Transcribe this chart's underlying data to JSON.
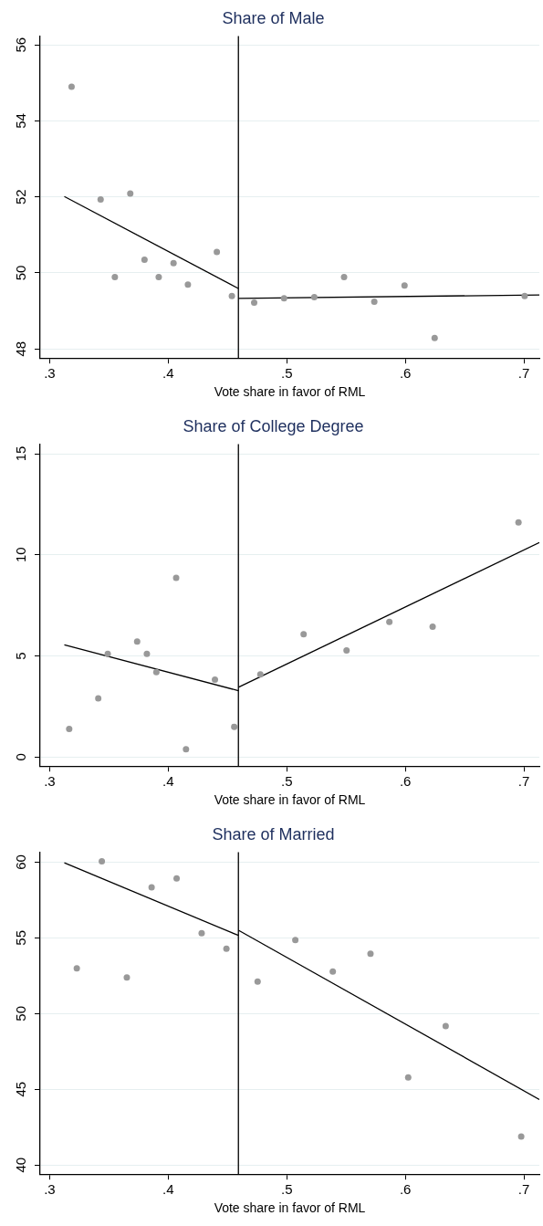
{
  "chart_data": [
    {
      "type": "scatter",
      "title": "Share of Male",
      "xlabel": "Vote share in favor of RML",
      "xlim": [
        0.292,
        0.713
      ],
      "xticks": [
        {
          "value": 0.3,
          "label": ".3"
        },
        {
          "value": 0.4,
          "label": ".4"
        },
        {
          "value": 0.5,
          "label": ".5"
        },
        {
          "value": 0.6,
          "label": ".6"
        },
        {
          "value": 0.7,
          "label": ".7"
        }
      ],
      "ylim": [
        47.76,
        56.23
      ],
      "yticks": [
        48,
        50,
        52,
        54,
        56
      ],
      "grid": "y",
      "legend": false,
      "ref_lines": [
        {
          "axis": "x",
          "value": 0.4592,
          "color": "#000000"
        }
      ],
      "series": [
        {
          "marker": "circle",
          "color": "#999999",
          "x": [
            0.3185,
            0.343,
            0.368,
            0.355,
            0.38,
            0.392,
            0.4045,
            0.4166,
            0.441,
            0.4537,
            0.4725,
            0.4977,
            0.5232,
            0.5483,
            0.5738,
            0.5993,
            0.6247,
            0.7006
          ],
          "values": [
            54.9,
            51.93,
            52.09,
            49.89,
            50.35,
            49.89,
            50.26,
            49.69,
            50.55,
            49.39,
            49.22,
            49.33,
            49.36,
            49.89,
            49.24,
            49.67,
            48.29,
            49.39
          ]
        },
        {
          "type": "line",
          "color": "#000000",
          "x": [
            0.3124,
            0.4592
          ],
          "values": [
            52.01,
            49.59
          ]
        },
        {
          "type": "line",
          "color": "#000000",
          "x": [
            0.4592,
            0.713
          ],
          "values": [
            49.33,
            49.42
          ]
        }
      ]
    },
    {
      "type": "scatter",
      "title": "Share of College Degree",
      "xlabel": "Vote share in favor of RML",
      "xlim": [
        0.292,
        0.713
      ],
      "xticks": [
        {
          "value": 0.3,
          "label": ".3"
        },
        {
          "value": 0.4,
          "label": ".4"
        },
        {
          "value": 0.5,
          "label": ".5"
        },
        {
          "value": 0.6,
          "label": ".6"
        },
        {
          "value": 0.7,
          "label": ".7"
        }
      ],
      "ylim": [
        -0.45,
        15.47
      ],
      "yticks": [
        0,
        5,
        10,
        15
      ],
      "grid": "y",
      "legend": false,
      "ref_lines": [
        {
          "axis": "x",
          "value": 0.4592,
          "color": "#000000"
        }
      ],
      "series": [
        {
          "marker": "circle",
          "color": "#999999",
          "x": [
            0.3165,
            0.341,
            0.349,
            0.3738,
            0.382,
            0.39,
            0.4067,
            0.415,
            0.4394,
            0.4557,
            0.4777,
            0.5142,
            0.5504,
            0.5865,
            0.623,
            0.6954
          ],
          "values": [
            1.39,
            2.9,
            5.1,
            5.71,
            5.1,
            4.2,
            8.86,
            0.38,
            3.83,
            1.49,
            4.09,
            6.07,
            5.27,
            6.68,
            6.45,
            11.6
          ]
        },
        {
          "type": "line",
          "color": "#000000",
          "x": [
            0.3124,
            0.4592
          ],
          "values": [
            5.55,
            3.28
          ]
        },
        {
          "type": "line",
          "color": "#000000",
          "x": [
            0.4592,
            0.713
          ],
          "values": [
            3.45,
            10.61
          ]
        }
      ]
    },
    {
      "type": "scatter",
      "title": "Share of Married",
      "xlabel": "Vote share in favor of RML",
      "xlim": [
        0.292,
        0.713
      ],
      "xticks": [
        {
          "value": 0.3,
          "label": ".3"
        },
        {
          "value": 0.4,
          "label": ".4"
        },
        {
          "value": 0.5,
          "label": ".5"
        },
        {
          "value": 0.6,
          "label": ".6"
        },
        {
          "value": 0.7,
          "label": ".7"
        }
      ],
      "ylim": [
        39.4,
        60.65
      ],
      "yticks": [
        40,
        45,
        50,
        55,
        60
      ],
      "grid": "y",
      "legend": false,
      "ref_lines": [
        {
          "axis": "x",
          "value": 0.4592,
          "color": "#000000"
        }
      ],
      "series": [
        {
          "marker": "circle",
          "color": "#999999",
          "x": [
            0.3229,
            0.344,
            0.3651,
            0.386,
            0.4071,
            0.4282,
            0.4491,
            0.4754,
            0.5072,
            0.5388,
            0.5706,
            0.6024,
            0.634,
            0.6977
          ],
          "values": [
            52.98,
            60.05,
            52.38,
            58.33,
            58.93,
            55.3,
            54.28,
            52.12,
            54.86,
            52.77,
            53.95,
            45.79,
            49.18,
            41.88
          ]
        },
        {
          "type": "line",
          "color": "#000000",
          "x": [
            0.3124,
            0.4592
          ],
          "values": [
            59.95,
            55.16
          ]
        },
        {
          "type": "line",
          "color": "#000000",
          "x": [
            0.4592,
            0.713
          ],
          "values": [
            55.5,
            44.33
          ]
        }
      ]
    }
  ]
}
